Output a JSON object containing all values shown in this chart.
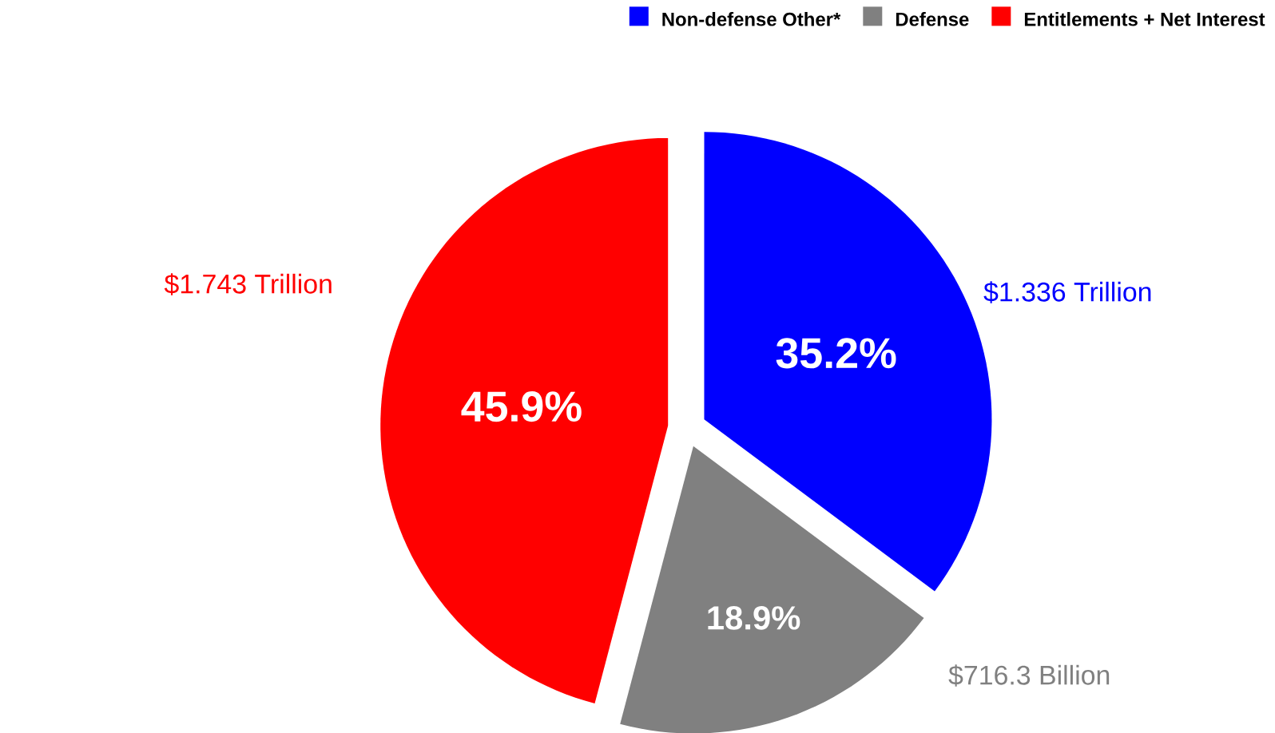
{
  "chart_data": {
    "type": "pie",
    "categories": [
      "Non-defense Other*",
      "Defense",
      "Entitlements + Net Interest"
    ],
    "values": [
      35.2,
      18.9,
      45.9
    ],
    "colors": [
      "#0000ff",
      "#808080",
      "#ff0000"
    ],
    "value_labels": [
      "35.2%",
      "18.9%",
      "45.9%"
    ],
    "annotations": [
      "$1.336 Trillion",
      "$716.3 Billion",
      "$1.743 Trillion"
    ],
    "legend": "top right"
  }
}
